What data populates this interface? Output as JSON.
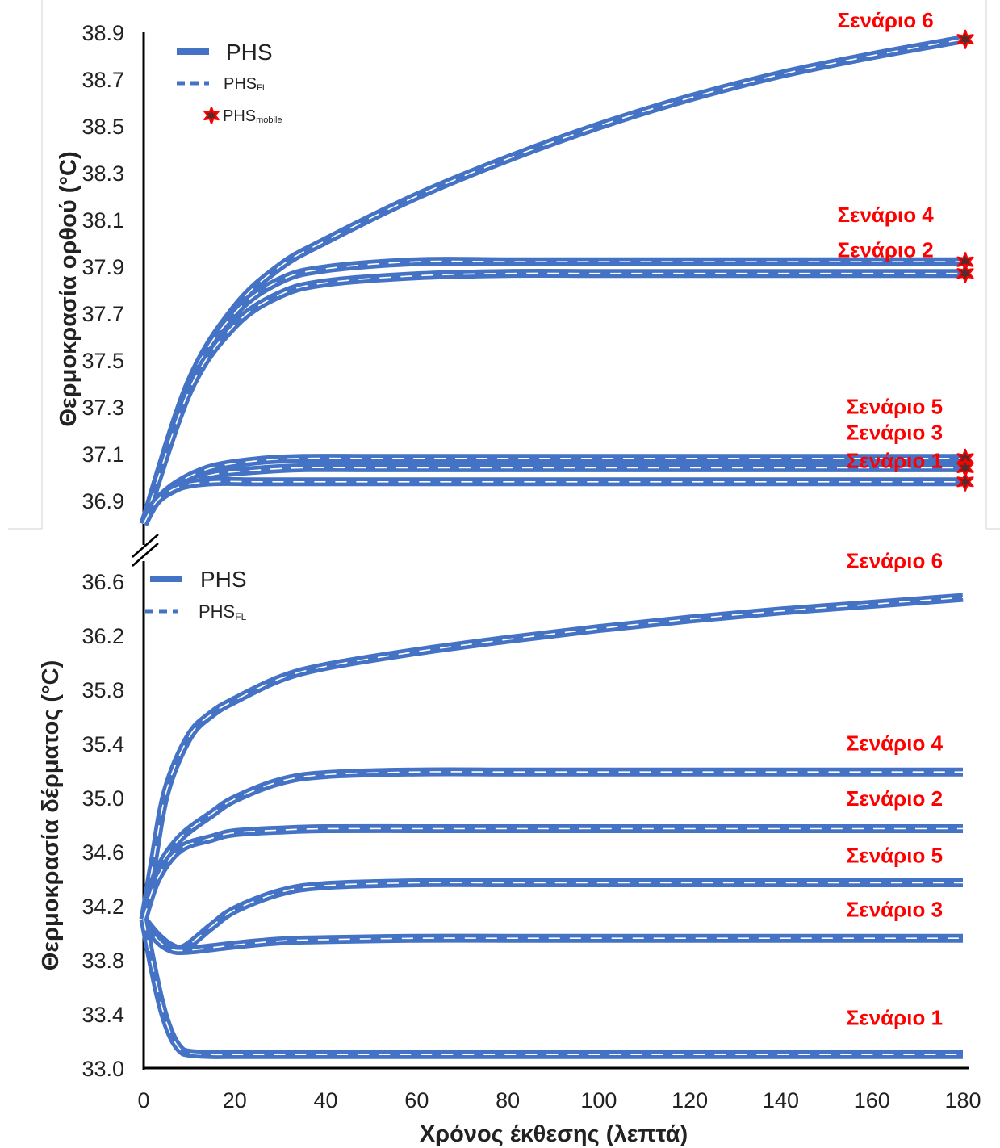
{
  "chart_data": [
    {
      "type": "line",
      "panel": "top",
      "ylabel": "Θερμοκρασία ορθού (°C)",
      "ylim": [
        36.8,
        38.9
      ],
      "yticks": [
        "36.9",
        "37.1",
        "37.3",
        "37.5",
        "37.7",
        "37.9",
        "38.1",
        "38.3",
        "38.5",
        "38.7",
        "38.9"
      ],
      "legend": [
        {
          "kind": "solid",
          "label": "PHS",
          "sub": ""
        },
        {
          "kind": "dashed",
          "label": "PHS",
          "sub": "FL"
        },
        {
          "kind": "star",
          "label": "PHS",
          "sub": "mobile"
        }
      ],
      "series": [
        {
          "name": "Σενάριο 6",
          "x": [
            0,
            10,
            20,
            30,
            40,
            60,
            80,
            100,
            120,
            140,
            160,
            180
          ],
          "y": [
            36.8,
            37.4,
            37.72,
            37.9,
            38.01,
            38.2,
            38.36,
            38.5,
            38.62,
            38.72,
            38.8,
            38.87
          ],
          "mobile": 38.87
        },
        {
          "name": "Σενάριο 4",
          "x": [
            0,
            10,
            20,
            30,
            40,
            60,
            80,
            100,
            120,
            140,
            160,
            180
          ],
          "y": [
            36.8,
            37.4,
            37.7,
            37.84,
            37.89,
            37.92,
            37.92,
            37.92,
            37.92,
            37.92,
            37.92,
            37.92
          ],
          "mobile": 37.92
        },
        {
          "name": "Σενάριο 2",
          "x": [
            0,
            10,
            20,
            30,
            40,
            60,
            80,
            100,
            120,
            140,
            160,
            180
          ],
          "y": [
            36.8,
            37.37,
            37.65,
            37.78,
            37.83,
            37.86,
            37.87,
            37.87,
            37.87,
            37.87,
            37.87,
            37.87
          ],
          "mobile": 37.87
        },
        {
          "name": "Σενάριο 5",
          "x": [
            0,
            3,
            8,
            15,
            25,
            35,
            50,
            70,
            100,
            140,
            180
          ],
          "y": [
            36.8,
            36.9,
            36.98,
            37.04,
            37.07,
            37.08,
            37.08,
            37.08,
            37.08,
            37.08,
            37.08
          ],
          "mobile": 37.08
        },
        {
          "name": "Σενάριο 3",
          "x": [
            0,
            3,
            8,
            15,
            25,
            35,
            50,
            70,
            100,
            140,
            180
          ],
          "y": [
            36.8,
            36.9,
            36.96,
            37.01,
            37.03,
            37.04,
            37.04,
            37.04,
            37.04,
            37.04,
            37.04
          ],
          "mobile": 37.04
        },
        {
          "name": "Σενάριο 1",
          "x": [
            0,
            3,
            8,
            15,
            25,
            35,
            50,
            70,
            100,
            140,
            180
          ],
          "y": [
            36.8,
            36.9,
            36.96,
            36.98,
            36.98,
            36.98,
            36.98,
            36.98,
            36.98,
            36.98,
            36.98
          ],
          "mobile": 36.98
        }
      ],
      "labels": [
        {
          "text": "Σενάριο 6",
          "x": 163,
          "y": 38.92
        },
        {
          "text": "Σενάριο 4",
          "x": 163,
          "y": 38.09
        },
        {
          "text": "Σενάριο 2",
          "x": 163,
          "y": 37.94
        },
        {
          "text": "Σενάριο 5",
          "x": 165,
          "y": 37.27
        },
        {
          "text": "Σενάριο 3",
          "x": 165,
          "y": 37.16
        },
        {
          "text": "Σενάριο 1",
          "x": 165,
          "y": 37.04
        }
      ]
    },
    {
      "type": "line",
      "panel": "bottom",
      "ylabel": "Θερμοκρασία δέρματος (°C)",
      "xlabel": "Χρόνος έκθεσης (λεπτά)",
      "xlim": [
        0,
        180
      ],
      "xticks": [
        "0",
        "20",
        "40",
        "60",
        "80",
        "100",
        "120",
        "140",
        "160",
        "180"
      ],
      "ylim": [
        33.0,
        36.75
      ],
      "yticks": [
        "33.0",
        "33.4",
        "33.8",
        "34.2",
        "34.6",
        "35.0",
        "35.4",
        "35.8",
        "36.2",
        "36.6"
      ],
      "legend": [
        {
          "kind": "solid",
          "label": "PHS",
          "sub": ""
        },
        {
          "kind": "dashed",
          "label": "PHS",
          "sub": "FL"
        }
      ],
      "series": [
        {
          "name": "Σενάριο 6",
          "x": [
            0,
            2,
            5,
            10,
            15,
            20,
            30,
            40,
            60,
            80,
            100,
            120,
            140,
            160,
            180
          ],
          "y": [
            34.1,
            34.5,
            35.05,
            35.45,
            35.62,
            35.72,
            35.88,
            35.97,
            36.08,
            36.17,
            36.25,
            36.32,
            36.38,
            36.43,
            36.48
          ]
        },
        {
          "name": "Σενάριο 4",
          "x": [
            0,
            3,
            8,
            15,
            20,
            30,
            40,
            60,
            80,
            100,
            140,
            180
          ],
          "y": [
            34.1,
            34.45,
            34.7,
            34.88,
            34.99,
            35.12,
            35.17,
            35.19,
            35.19,
            35.19,
            35.19,
            35.19
          ]
        },
        {
          "name": "Σενάριο 2",
          "x": [
            0,
            3,
            8,
            15,
            20,
            30,
            40,
            60,
            80,
            100,
            140,
            180
          ],
          "y": [
            34.1,
            34.4,
            34.62,
            34.7,
            34.74,
            34.76,
            34.77,
            34.77,
            34.77,
            34.77,
            34.77,
            34.77
          ]
        },
        {
          "name": "Σενάριο 5",
          "x": [
            0,
            3,
            6,
            9,
            15,
            20,
            30,
            40,
            60,
            80,
            100,
            140,
            180
          ],
          "y": [
            34.1,
            33.98,
            33.9,
            33.89,
            34.05,
            34.17,
            34.3,
            34.35,
            34.37,
            34.37,
            34.37,
            34.37,
            34.37
          ]
        },
        {
          "name": "Σενάριο 3",
          "x": [
            0,
            3,
            6,
            9,
            15,
            20,
            30,
            40,
            60,
            80,
            100,
            140,
            180
          ],
          "y": [
            34.1,
            33.95,
            33.88,
            33.87,
            33.89,
            33.91,
            33.94,
            33.95,
            33.96,
            33.96,
            33.96,
            33.96,
            33.96
          ]
        },
        {
          "name": "Σενάριο 1",
          "x": [
            0,
            2,
            4,
            6,
            8,
            10,
            15,
            20,
            30,
            40,
            60,
            100,
            140,
            180
          ],
          "y": [
            34.1,
            33.75,
            33.45,
            33.25,
            33.14,
            33.11,
            33.1,
            33.1,
            33.1,
            33.1,
            33.1,
            33.1,
            33.1,
            33.1
          ]
        }
      ],
      "labels": [
        {
          "text": "Σενάριο 6",
          "x": 165,
          "y": 36.7
        },
        {
          "text": "Σενάριο 4",
          "x": 165,
          "y": 35.35
        },
        {
          "text": "Σενάριο 2",
          "x": 165,
          "y": 34.94
        },
        {
          "text": "Σενάριο 5",
          "x": 165,
          "y": 34.52
        },
        {
          "text": "Σενάριο 3",
          "x": 165,
          "y": 34.12
        },
        {
          "text": "Σενάριο 1",
          "x": 165,
          "y": 33.32
        }
      ]
    }
  ],
  "colors": {
    "series": "#4472c4",
    "label": "#ff0000",
    "axis": "#000000",
    "text": "#222222",
    "star_outline": "#ff0000",
    "star_fill": "#5a2a2a"
  }
}
